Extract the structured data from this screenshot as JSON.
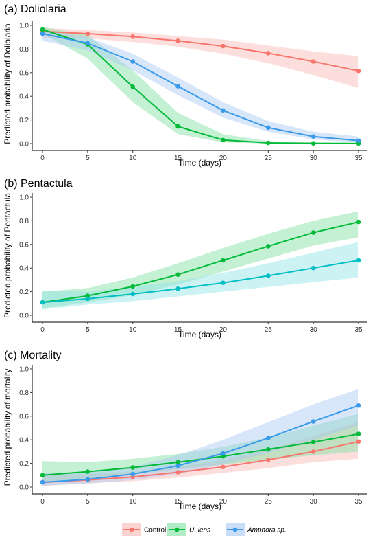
{
  "colors": {
    "control": "#F8766D",
    "u_lens_line": "#00BA38",
    "u_lens_band": "#7CDFA0",
    "amphora_line": "#3A9BEA",
    "amphora_band": "#A9C8F3",
    "pentactula_second_line": "#00BFC4",
    "pentactula_second_band": "#8FE3E6",
    "control_band": "#F9B8B3"
  },
  "legend": {
    "items": [
      {
        "label": "Control",
        "color_key": "control",
        "band_key": "control_band",
        "italic": false
      },
      {
        "label": "U. lens",
        "color_key": "u_lens_line",
        "band_key": "u_lens_band",
        "italic": true
      },
      {
        "label": "Amphora sp.",
        "color_key": "amphora_line",
        "band_key": "amphora_band",
        "italic": true
      }
    ]
  },
  "chart_data": [
    {
      "type": "line",
      "title": "(a) Doliolaria",
      "xlabel": "Time (days)",
      "ylabel": "Predicted probability of Doliolaria",
      "x": [
        0,
        5,
        10,
        15,
        20,
        25,
        30,
        35
      ],
      "xticks": [
        0,
        5,
        10,
        15,
        20,
        25,
        30,
        35
      ],
      "yticks": [
        0.0,
        0.2,
        0.4,
        0.6,
        0.8,
        1.0
      ],
      "ytick_labels": [
        "0.0",
        "0.2",
        "0.4",
        "0.6",
        "0.8",
        "1.0"
      ],
      "xlim": [
        0,
        35
      ],
      "ylim": [
        0,
        1
      ],
      "grid": false,
      "series": [
        {
          "name": "Control",
          "color_key": "control",
          "band_key": "control_band",
          "values": [
            0.95,
            0.93,
            0.905,
            0.87,
            0.825,
            0.765,
            0.695,
            0.615
          ],
          "lower": [
            0.89,
            0.89,
            0.86,
            0.82,
            0.76,
            0.68,
            0.58,
            0.47
          ],
          "upper": [
            0.98,
            0.96,
            0.94,
            0.91,
            0.88,
            0.83,
            0.78,
            0.74
          ]
        },
        {
          "name": "U. lens",
          "color_key": "u_lens_line",
          "band_key": "u_lens_band",
          "values": [
            0.965,
            0.84,
            0.48,
            0.145,
            0.03,
            0.006,
            0.002,
            0.001
          ],
          "lower": [
            0.93,
            0.72,
            0.35,
            0.08,
            0.01,
            0.0,
            0.0,
            0.0
          ],
          "upper": [
            0.985,
            0.92,
            0.62,
            0.26,
            0.08,
            0.02,
            0.01,
            0.005
          ]
        },
        {
          "name": "Amphora sp.",
          "color_key": "amphora_line",
          "band_key": "amphora_band",
          "values": [
            0.93,
            0.85,
            0.695,
            0.485,
            0.28,
            0.135,
            0.06,
            0.025
          ],
          "lower": [
            0.87,
            0.79,
            0.62,
            0.41,
            0.22,
            0.1,
            0.035,
            0.01
          ],
          "upper": [
            0.96,
            0.9,
            0.76,
            0.56,
            0.35,
            0.19,
            0.1,
            0.06
          ]
        }
      ]
    },
    {
      "type": "line",
      "title": "(b) Pentactula",
      "xlabel": "Time (days)",
      "ylabel": "Predicted probability of Pentactula",
      "x": [
        0,
        5,
        10,
        15,
        20,
        25,
        30,
        35
      ],
      "xticks": [
        0,
        5,
        10,
        15,
        20,
        25,
        30,
        35
      ],
      "yticks": [
        0.0,
        0.2,
        0.4,
        0.6,
        0.8,
        1.0
      ],
      "ytick_labels": [
        "0.0",
        "0.2",
        "0.4",
        "0.6",
        "0.8",
        "1.0"
      ],
      "xlim": [
        0,
        35
      ],
      "ylim": [
        0,
        1
      ],
      "grid": false,
      "series": [
        {
          "color_key": "u_lens_line",
          "band_key": "u_lens_band",
          "values": [
            0.11,
            0.165,
            0.245,
            0.345,
            0.465,
            0.585,
            0.7,
            0.79
          ],
          "lower": [
            0.06,
            0.11,
            0.17,
            0.26,
            0.37,
            0.48,
            0.59,
            0.66
          ],
          "upper": [
            0.2,
            0.23,
            0.32,
            0.44,
            0.57,
            0.69,
            0.8,
            0.88
          ]
        },
        {
          "color_key": "pentactula_second_line",
          "band_key": "pentactula_second_band",
          "values": [
            0.11,
            0.14,
            0.18,
            0.225,
            0.275,
            0.335,
            0.4,
            0.465
          ],
          "lower": [
            0.05,
            0.09,
            0.12,
            0.16,
            0.2,
            0.24,
            0.28,
            0.32
          ],
          "upper": [
            0.21,
            0.2,
            0.24,
            0.29,
            0.36,
            0.44,
            0.53,
            0.62
          ]
        }
      ]
    },
    {
      "type": "line",
      "title": "(c) Mortality",
      "xlabel": "Time (days)",
      "ylabel": "Predicted probability of mortality",
      "x": [
        0,
        5,
        10,
        15,
        20,
        25,
        30,
        35
      ],
      "xticks": [
        0,
        5,
        10,
        15,
        20,
        25,
        30,
        35
      ],
      "yticks": [
        0.0,
        0.2,
        0.4,
        0.6,
        0.8,
        1.0
      ],
      "ytick_labels": [
        "0.0",
        "0.2",
        "0.4",
        "0.6",
        "0.8",
        "1.0"
      ],
      "xlim": [
        0,
        35
      ],
      "ylim": [
        0,
        1
      ],
      "grid": false,
      "series": [
        {
          "name": "Control",
          "color_key": "control",
          "band_key": "control_band",
          "values": [
            0.04,
            0.06,
            0.085,
            0.125,
            0.17,
            0.23,
            0.3,
            0.385
          ],
          "lower": [
            0.01,
            0.03,
            0.05,
            0.08,
            0.12,
            0.16,
            0.21,
            0.24
          ],
          "upper": [
            0.1,
            0.11,
            0.13,
            0.17,
            0.23,
            0.32,
            0.43,
            0.55
          ]
        },
        {
          "name": "U. lens",
          "color_key": "u_lens_line",
          "band_key": "u_lens_band",
          "values": [
            0.1,
            0.13,
            0.165,
            0.21,
            0.26,
            0.32,
            0.38,
            0.45
          ],
          "lower": [
            0.04,
            0.07,
            0.11,
            0.15,
            0.19,
            0.23,
            0.27,
            0.3
          ],
          "upper": [
            0.22,
            0.21,
            0.24,
            0.28,
            0.34,
            0.42,
            0.52,
            0.62
          ]
        },
        {
          "name": "Amphora sp.",
          "color_key": "amphora_line",
          "band_key": "amphora_band",
          "values": [
            0.04,
            0.065,
            0.11,
            0.18,
            0.285,
            0.415,
            0.555,
            0.69
          ],
          "lower": [
            0.01,
            0.03,
            0.06,
            0.11,
            0.19,
            0.29,
            0.4,
            0.52
          ],
          "upper": [
            0.12,
            0.12,
            0.17,
            0.27,
            0.4,
            0.55,
            0.7,
            0.83
          ]
        }
      ]
    }
  ]
}
